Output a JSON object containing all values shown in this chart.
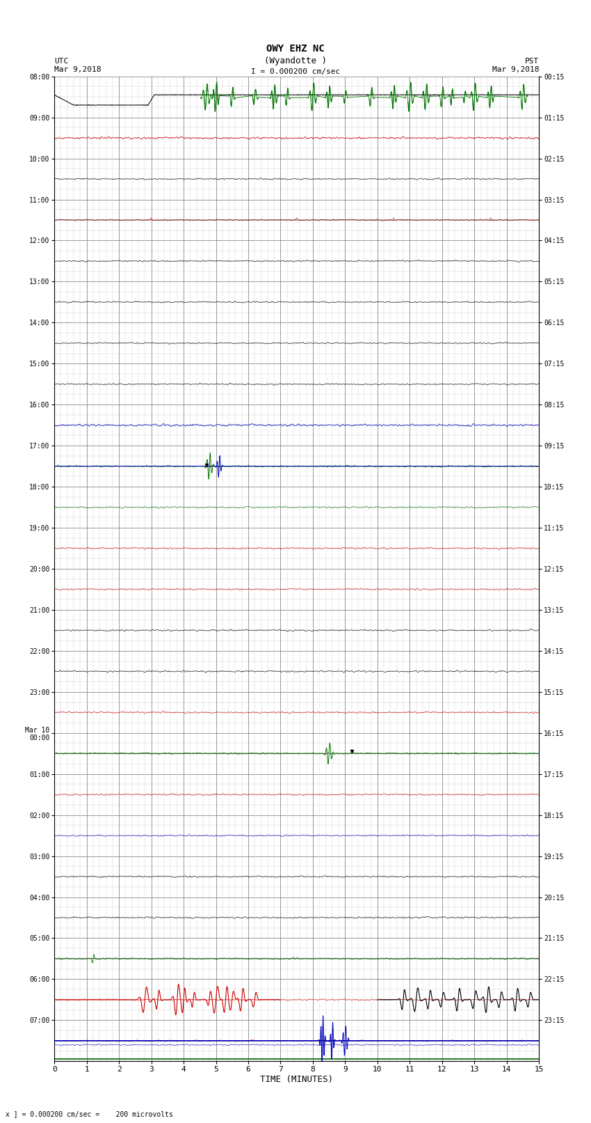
{
  "title_line1": "OWY EHZ NC",
  "title_line2": "(Wyandotte )",
  "scale_label": "I = 0.000200 cm/sec",
  "left_header": "UTC\nMar 9,2018",
  "right_header": "PST\nMar 9,2018",
  "bottom_label": "TIME (MINUTES)",
  "bottom_note": "x ] = 0.000200 cm/sec =    200 microvolts",
  "utc_times": [
    "08:00",
    "09:00",
    "10:00",
    "11:00",
    "12:00",
    "13:00",
    "14:00",
    "15:00",
    "16:00",
    "17:00",
    "18:00",
    "19:00",
    "20:00",
    "21:00",
    "22:00",
    "23:00",
    "Mar 10\n00:00",
    "01:00",
    "02:00",
    "03:00",
    "04:00",
    "05:00",
    "06:00",
    "07:00"
  ],
  "pst_times": [
    "00:15",
    "01:15",
    "02:15",
    "03:15",
    "04:15",
    "05:15",
    "06:15",
    "07:15",
    "08:15",
    "09:15",
    "10:15",
    "11:15",
    "12:15",
    "13:15",
    "14:15",
    "15:15",
    "16:15",
    "17:15",
    "18:15",
    "19:15",
    "20:15",
    "21:15",
    "22:15",
    "23:15"
  ],
  "n_rows": 24,
  "n_minutes": 15,
  "bg_color": "#ffffff",
  "grid_major_color": "#888888",
  "grid_minor_color": "#cccccc",
  "col_black": "#000000",
  "col_green": "#007700",
  "col_red": "#cc0000",
  "col_blue": "#0000bb",
  "col_darkgreen": "#006600",
  "figwidth": 8.5,
  "figheight": 16.13
}
